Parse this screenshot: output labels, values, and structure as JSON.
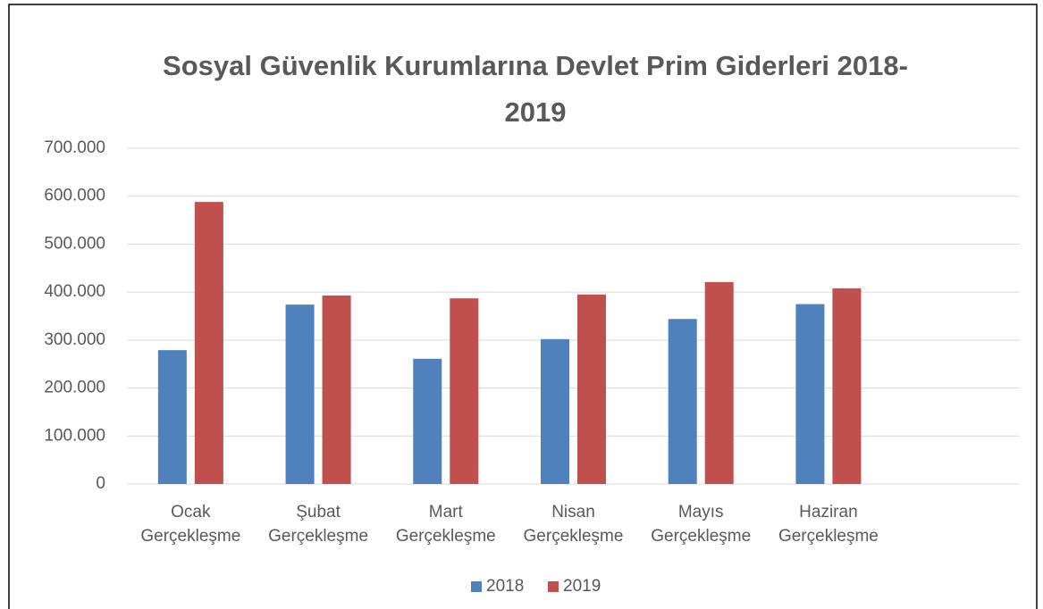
{
  "chart_data": {
    "type": "bar",
    "title": "Sosyal Güvenlik Kurumlarına Devlet Prim Giderleri 2018-2019",
    "categories": [
      "Ocak Gerçekleşme",
      "Şubat Gerçekleşme",
      "Mart Gerçekleşme",
      "Nisan Gerçekleşme",
      "Mayıs Gerçekleşme",
      "Haziran Gerçekleşme",
      null
    ],
    "series": [
      {
        "name": "2018",
        "color": "#4f81bd",
        "values": [
          279000,
          374000,
          261000,
          302000,
          344000,
          375000,
          null
        ]
      },
      {
        "name": "2019",
        "color": "#c0504d",
        "values": [
          588000,
          393000,
          387000,
          395000,
          421000,
          408000,
          null
        ]
      }
    ],
    "ylim": [
      0,
      700000
    ],
    "yticks": [
      0,
      {
        "value": 100000,
        "label": "100.000"
      },
      {
        "value": 200000,
        "label": "200.000"
      },
      {
        "value": 300000,
        "label": "300.000"
      },
      {
        "value": 400000,
        "label": "400.000"
      },
      {
        "value": 500000,
        "label": "500.000"
      },
      {
        "value": 600000,
        "label": "600.000"
      },
      {
        "value": 700000,
        "label": "700.000"
      }
    ],
    "grid": true,
    "legend": "bottom"
  }
}
